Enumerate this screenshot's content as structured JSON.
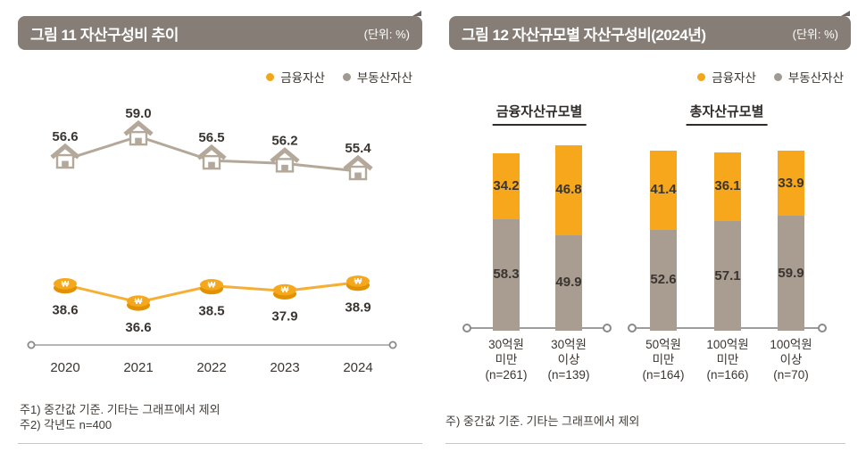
{
  "panels": {
    "left": {
      "title": "그림 11  자산구성비 추이",
      "unit": "(단위: %)",
      "notes": [
        "주1) 중간값 기준. 기타는 그래프에서 제외",
        "주2) 각년도 n=400"
      ]
    },
    "right": {
      "title": "그림 12  자산규모별 자산구성비(2024년)",
      "unit": "(단위: %)",
      "notes": [
        "주) 중간값 기준. 기타는 그래프에서 제외"
      ]
    }
  },
  "legend": {
    "financial": "금융자산",
    "real_estate": "부동산자산"
  },
  "colors": {
    "financial_bar": "#F6A71B",
    "financial_line": "#F5AF35",
    "financial_coin_top": "#F6A81C",
    "financial_coin_bottom": "#E29102",
    "real_estate_bar": "#A89D90",
    "real_estate_line": "#B4A89A",
    "legend_financial_dot": "#F0A816",
    "legend_real_estate_dot": "#A09A93",
    "header_bg": "#867E76",
    "label_text": "#3A3531",
    "axis": "#9D9D9D"
  },
  "chart_data": [
    {
      "type": "line",
      "title": "자산구성비 추이",
      "unit": "%",
      "categories": [
        "2020",
        "2021",
        "2022",
        "2023",
        "2024"
      ],
      "series": [
        {
          "name": "부동산자산",
          "marker": "house",
          "values": [
            56.6,
            59.0,
            56.5,
            56.2,
            55.4
          ]
        },
        {
          "name": "금융자산",
          "marker": "coin",
          "values": [
            38.6,
            36.6,
            38.5,
            37.9,
            38.9
          ]
        }
      ],
      "legend_position": "top-right",
      "grid": false
    },
    {
      "type": "stacked-bar",
      "title": "자산규모별 자산구성비(2024년)",
      "unit": "%",
      "stack_order_bottom_to_top": [
        "부동산자산",
        "금융자산"
      ],
      "groups": [
        {
          "title": "금융자산규모별",
          "bars": [
            {
              "category_lines": [
                "30억원",
                "미만",
                "(n=261)"
              ],
              "real_estate": 58.3,
              "financial": 34.2
            },
            {
              "category_lines": [
                "30억원",
                "이상",
                "(n=139)"
              ],
              "real_estate": 49.9,
              "financial": 46.8
            }
          ]
        },
        {
          "title": "총자산규모별",
          "bars": [
            {
              "category_lines": [
                "50억원",
                "미만",
                "(n=164)"
              ],
              "real_estate": 52.6,
              "financial": 41.4
            },
            {
              "category_lines": [
                "100억원",
                "미만",
                "(n=166)"
              ],
              "real_estate": 57.1,
              "financial": 36.1
            },
            {
              "category_lines": [
                "100억원",
                "이상",
                "(n=70)"
              ],
              "real_estate": 59.9,
              "financial": 33.9
            }
          ]
        }
      ],
      "legend_position": "top-right",
      "grid": false
    }
  ]
}
